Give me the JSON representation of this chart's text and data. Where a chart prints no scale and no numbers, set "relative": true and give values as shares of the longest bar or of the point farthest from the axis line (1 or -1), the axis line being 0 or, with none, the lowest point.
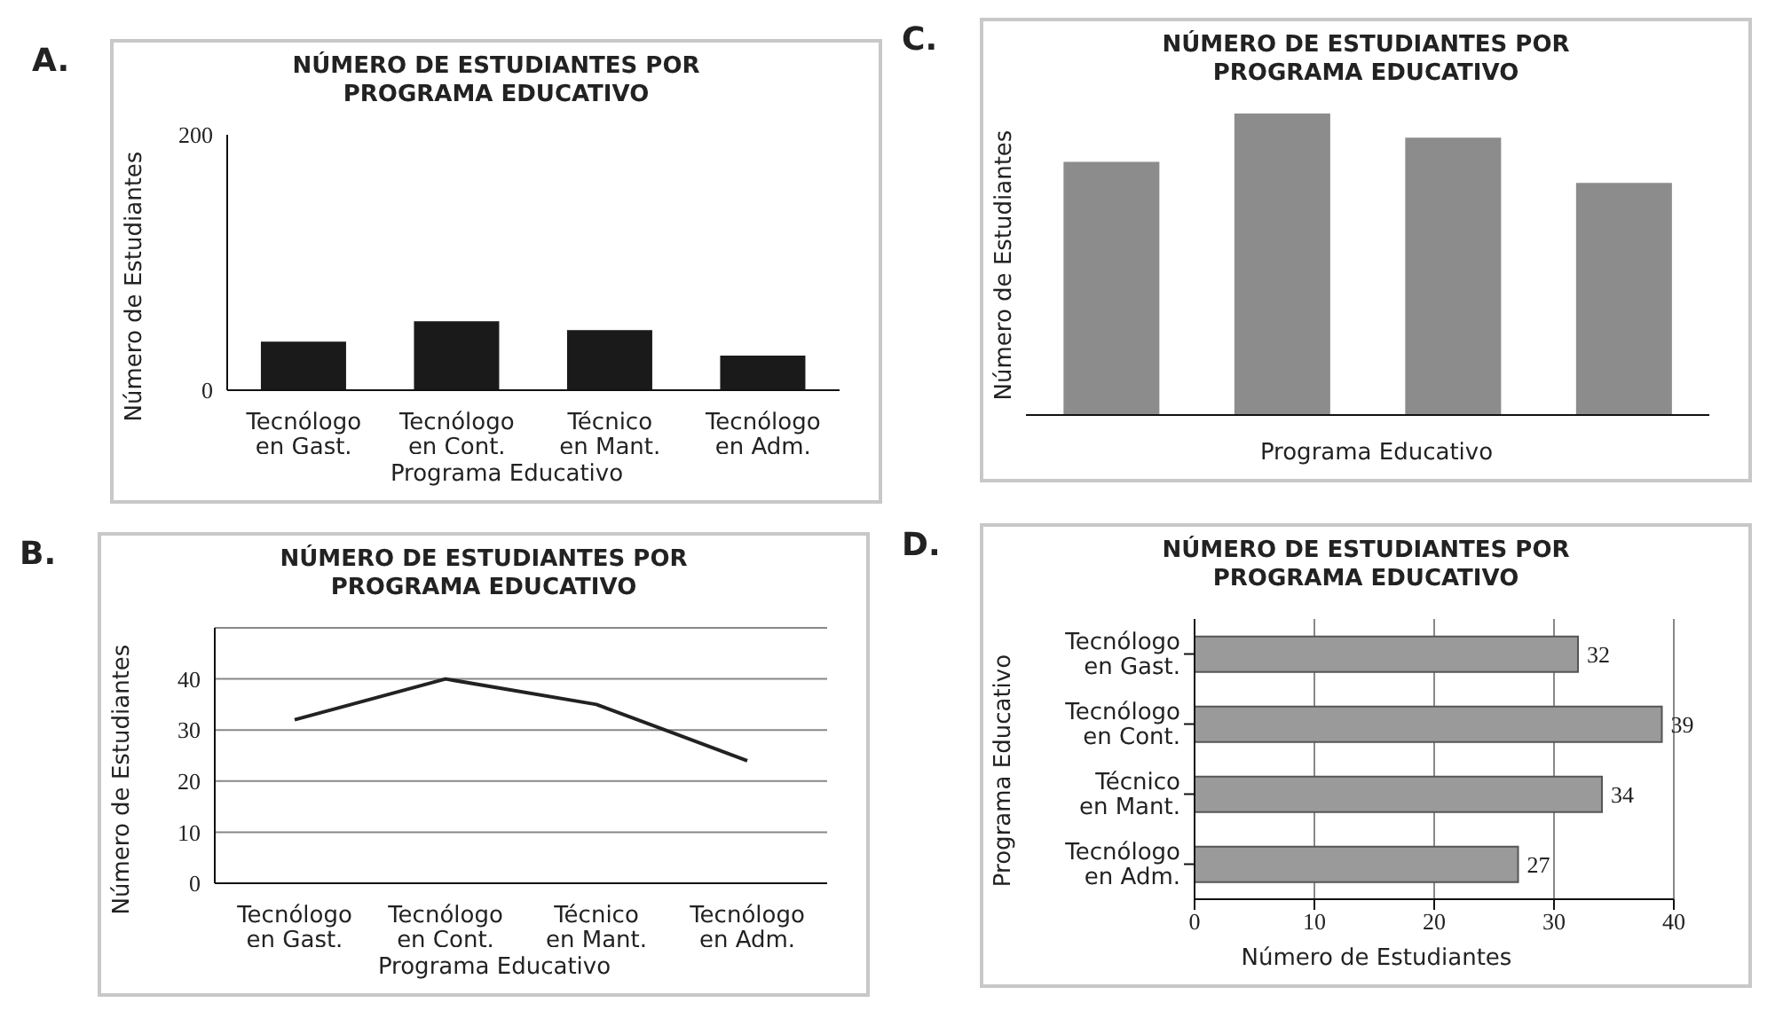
{
  "chart_data": [
    {
      "type": "bar",
      "title": "NÚMERO DE ESTUDIANTES POR PROGRAMA EDUCATIVO",
      "xlabel": "Programa Educativo",
      "ylabel": "Número de Estudiantes",
      "annotations": [
        "A."
      ],
      "categories": [
        "Tecnólogo en Gast.",
        "Tecnólogo en Cont.",
        "Técnico en Mant.",
        "Tecnólogo en Adm."
      ],
      "values": [
        38,
        54,
        47,
        27
      ],
      "color": "#1a1a1a",
      "ylim": [
        0,
        200
      ],
      "yticks": [
        0,
        200
      ]
    },
    {
      "type": "line",
      "title": "NÚMERO DE ESTUDIANTES POR PROGRAMA EDUCATIVO",
      "xlabel": "Programa Educativo",
      "ylabel": "Número de Estudiantes",
      "annotations": [
        "B."
      ],
      "categories": [
        "Tecnólogo en Gast.",
        "Tecnólogo en Cont.",
        "Técnico en Mant.",
        "Tecnólogo en Adm."
      ],
      "values": [
        32,
        40,
        35,
        24
      ],
      "color": "#222222",
      "ylim": [
        0,
        50
      ],
      "yticks": [
        0,
        10,
        20,
        30,
        40
      ],
      "grid": "y"
    },
    {
      "type": "bar",
      "title": "NÚMERO DE ESTUDIANTES POR PROGRAMA EDUCATIVO",
      "xlabel": "Programa Educativo",
      "ylabel": "Número de Estudiantes",
      "annotations": [
        "C."
      ],
      "categories": [
        null,
        null,
        null,
        null
      ],
      "values": [
        0.84,
        1,
        0.92,
        0.77
      ],
      "color": "#8c8c8c",
      "relative": true
    },
    {
      "type": "bar",
      "orientation": "horizontal",
      "title": "NÚMERO DE ESTUDIANTES POR PROGRAMA EDUCATIVO",
      "xlabel": "Número de Estudiantes",
      "ylabel": "Programa Educativo",
      "annotations": [
        "D."
      ],
      "categories": [
        "Tecnólogo en Gast.",
        "Tecnólogo en Cont.",
        "Técnico en Mant.",
        "Tecnólogo en Adm."
      ],
      "values": [
        32,
        39,
        34,
        27
      ],
      "color": "#9a9a9a",
      "xlim": [
        0,
        40
      ],
      "xticks": [
        0,
        10,
        20,
        30,
        40
      ],
      "grid": "x",
      "data_labels": true
    }
  ]
}
